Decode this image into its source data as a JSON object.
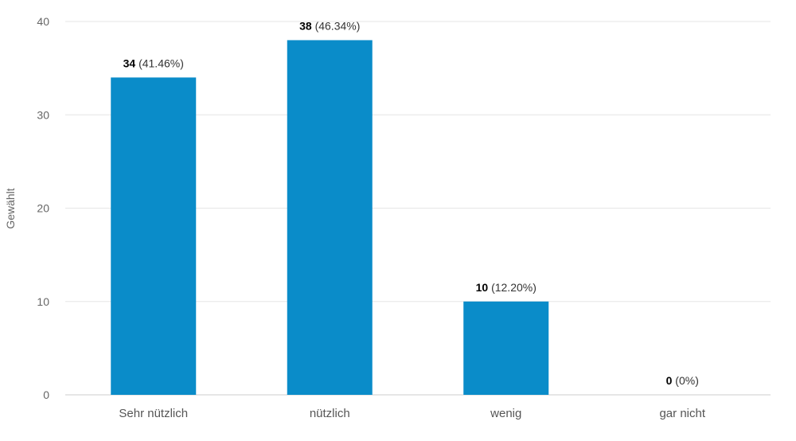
{
  "chart_data": {
    "type": "bar",
    "title": "",
    "xlabel": "",
    "ylabel": "Gewählt",
    "ylim": [
      0,
      40
    ],
    "yticks": [
      0,
      10,
      20,
      30,
      40
    ],
    "categories": [
      "Sehr nützlich",
      "nützlich",
      "wenig",
      "gar nicht"
    ],
    "values": [
      34,
      38,
      10,
      0
    ],
    "percent_labels": [
      "(41.46%)",
      "(46.34%)",
      "(12.20%)",
      "(0%)"
    ],
    "bar_color": "#0a8cc9",
    "grid": true,
    "legend": "none"
  }
}
